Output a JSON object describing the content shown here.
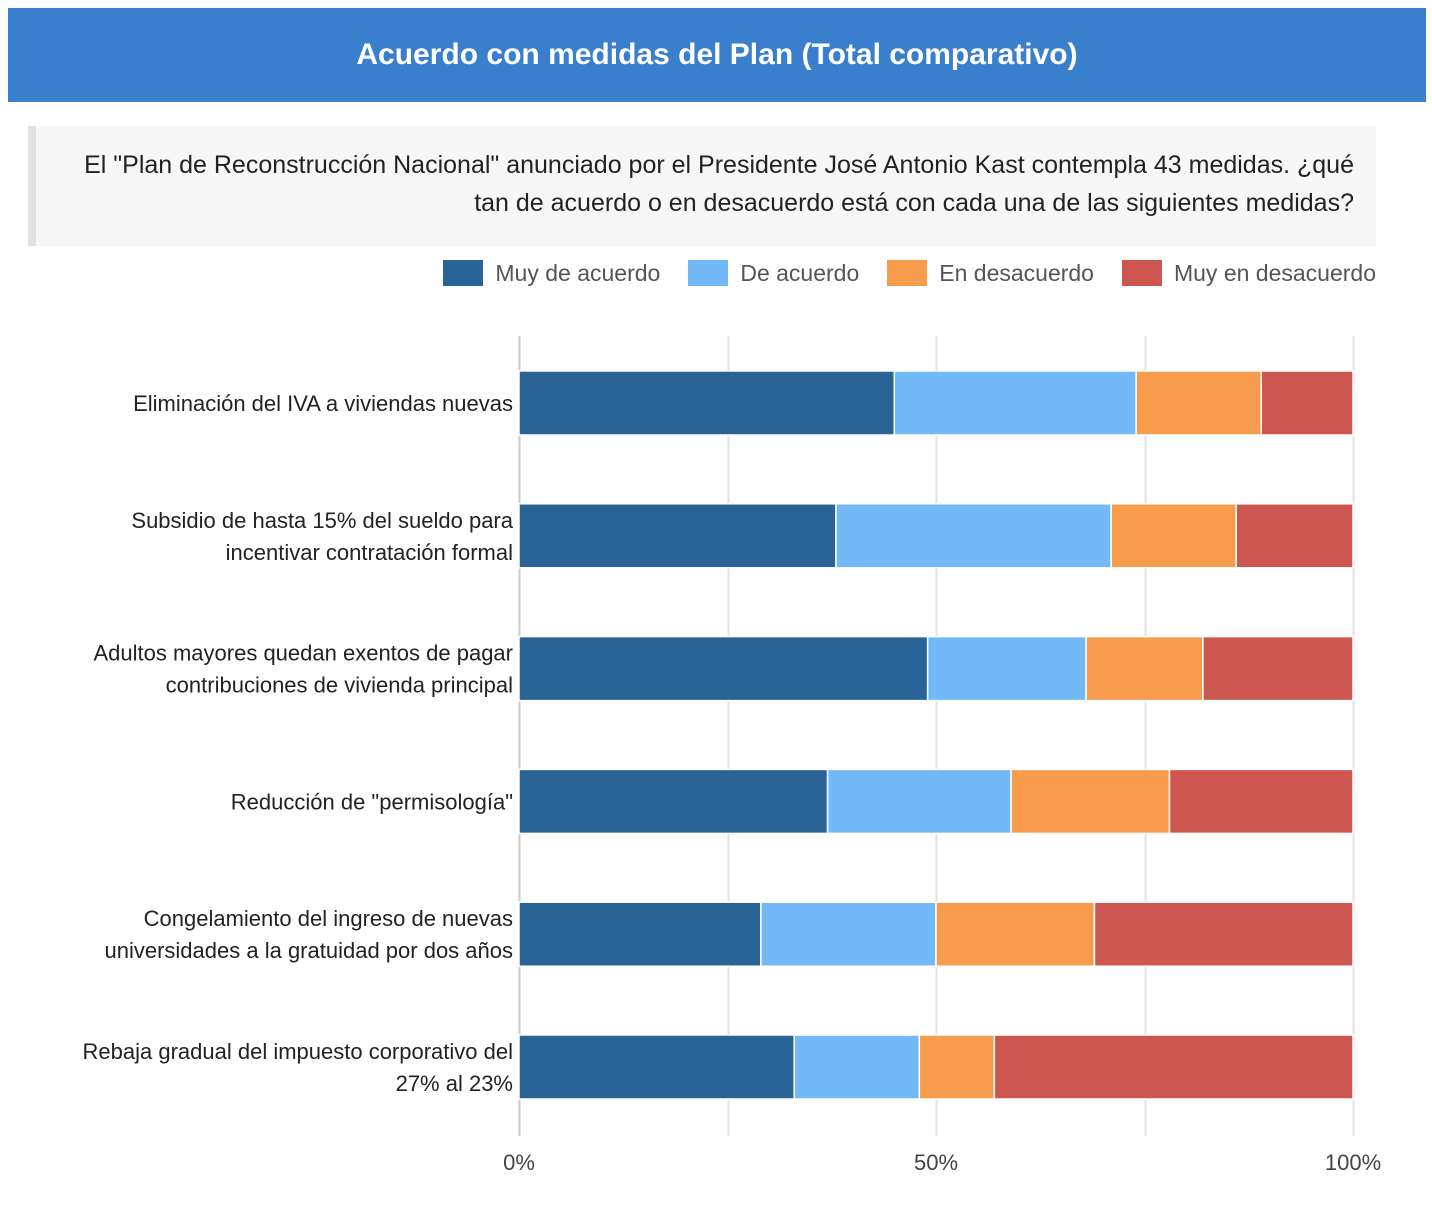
{
  "header": {
    "title": "Acuerdo con medidas del Plan (Total comparativo)"
  },
  "question": {
    "text": "El \"Plan de Reconstrucción Nacional\" anunciado por el Presidente José Antonio Kast contempla 43 medidas. ¿qué tan de acuerdo o en desacuerdo está con cada una de las siguientes medidas?"
  },
  "colors": {
    "header_bg": "#3a7fcd",
    "muy_de_acuerdo": "#2a6496",
    "de_acuerdo": "#74b9f7",
    "en_desacuerdo": "#f79c4c",
    "muy_en_desacuerdo": "#cd5750"
  },
  "chart_data": {
    "type": "bar",
    "orientation": "horizontal",
    "stacked": true,
    "categories": [
      [
        "Eliminación del IVA a viviendas nuevas"
      ],
      [
        "Subsidio de hasta 15% del sueldo para",
        "incentivar contratación formal"
      ],
      [
        "Adultos mayores quedan exentos de pagar",
        "contribuciones de vivienda principal"
      ],
      [
        "Reducción de \"permisología\""
      ],
      [
        "Congelamiento del ingreso de nuevas",
        "universidades a la gratuidad por dos años"
      ],
      [
        "Rebaja gradual del impuesto corporativo del",
        "27% al 23%"
      ]
    ],
    "series": [
      {
        "name": "Muy de acuerdo",
        "color": "#2a6496",
        "values": [
          45,
          38,
          49,
          37,
          29,
          33
        ]
      },
      {
        "name": "De acuerdo",
        "color": "#74b9f7",
        "values": [
          29,
          33,
          19,
          22,
          21,
          15
        ]
      },
      {
        "name": "En desacuerdo",
        "color": "#f79c4c",
        "values": [
          15,
          15,
          14,
          19,
          19,
          9
        ]
      },
      {
        "name": "Muy en desacuerdo",
        "color": "#cd5750",
        "values": [
          11,
          14,
          18,
          22,
          31,
          43
        ]
      }
    ],
    "xlim": [
      0,
      100
    ],
    "xticks": [
      {
        "value": 0,
        "label": "0%"
      },
      {
        "value": 50,
        "label": "50%"
      },
      {
        "value": 100,
        "label": "100%"
      }
    ],
    "gridlines": [
      0,
      25,
      50,
      75,
      100
    ],
    "grid": true,
    "legend": "top-right"
  }
}
